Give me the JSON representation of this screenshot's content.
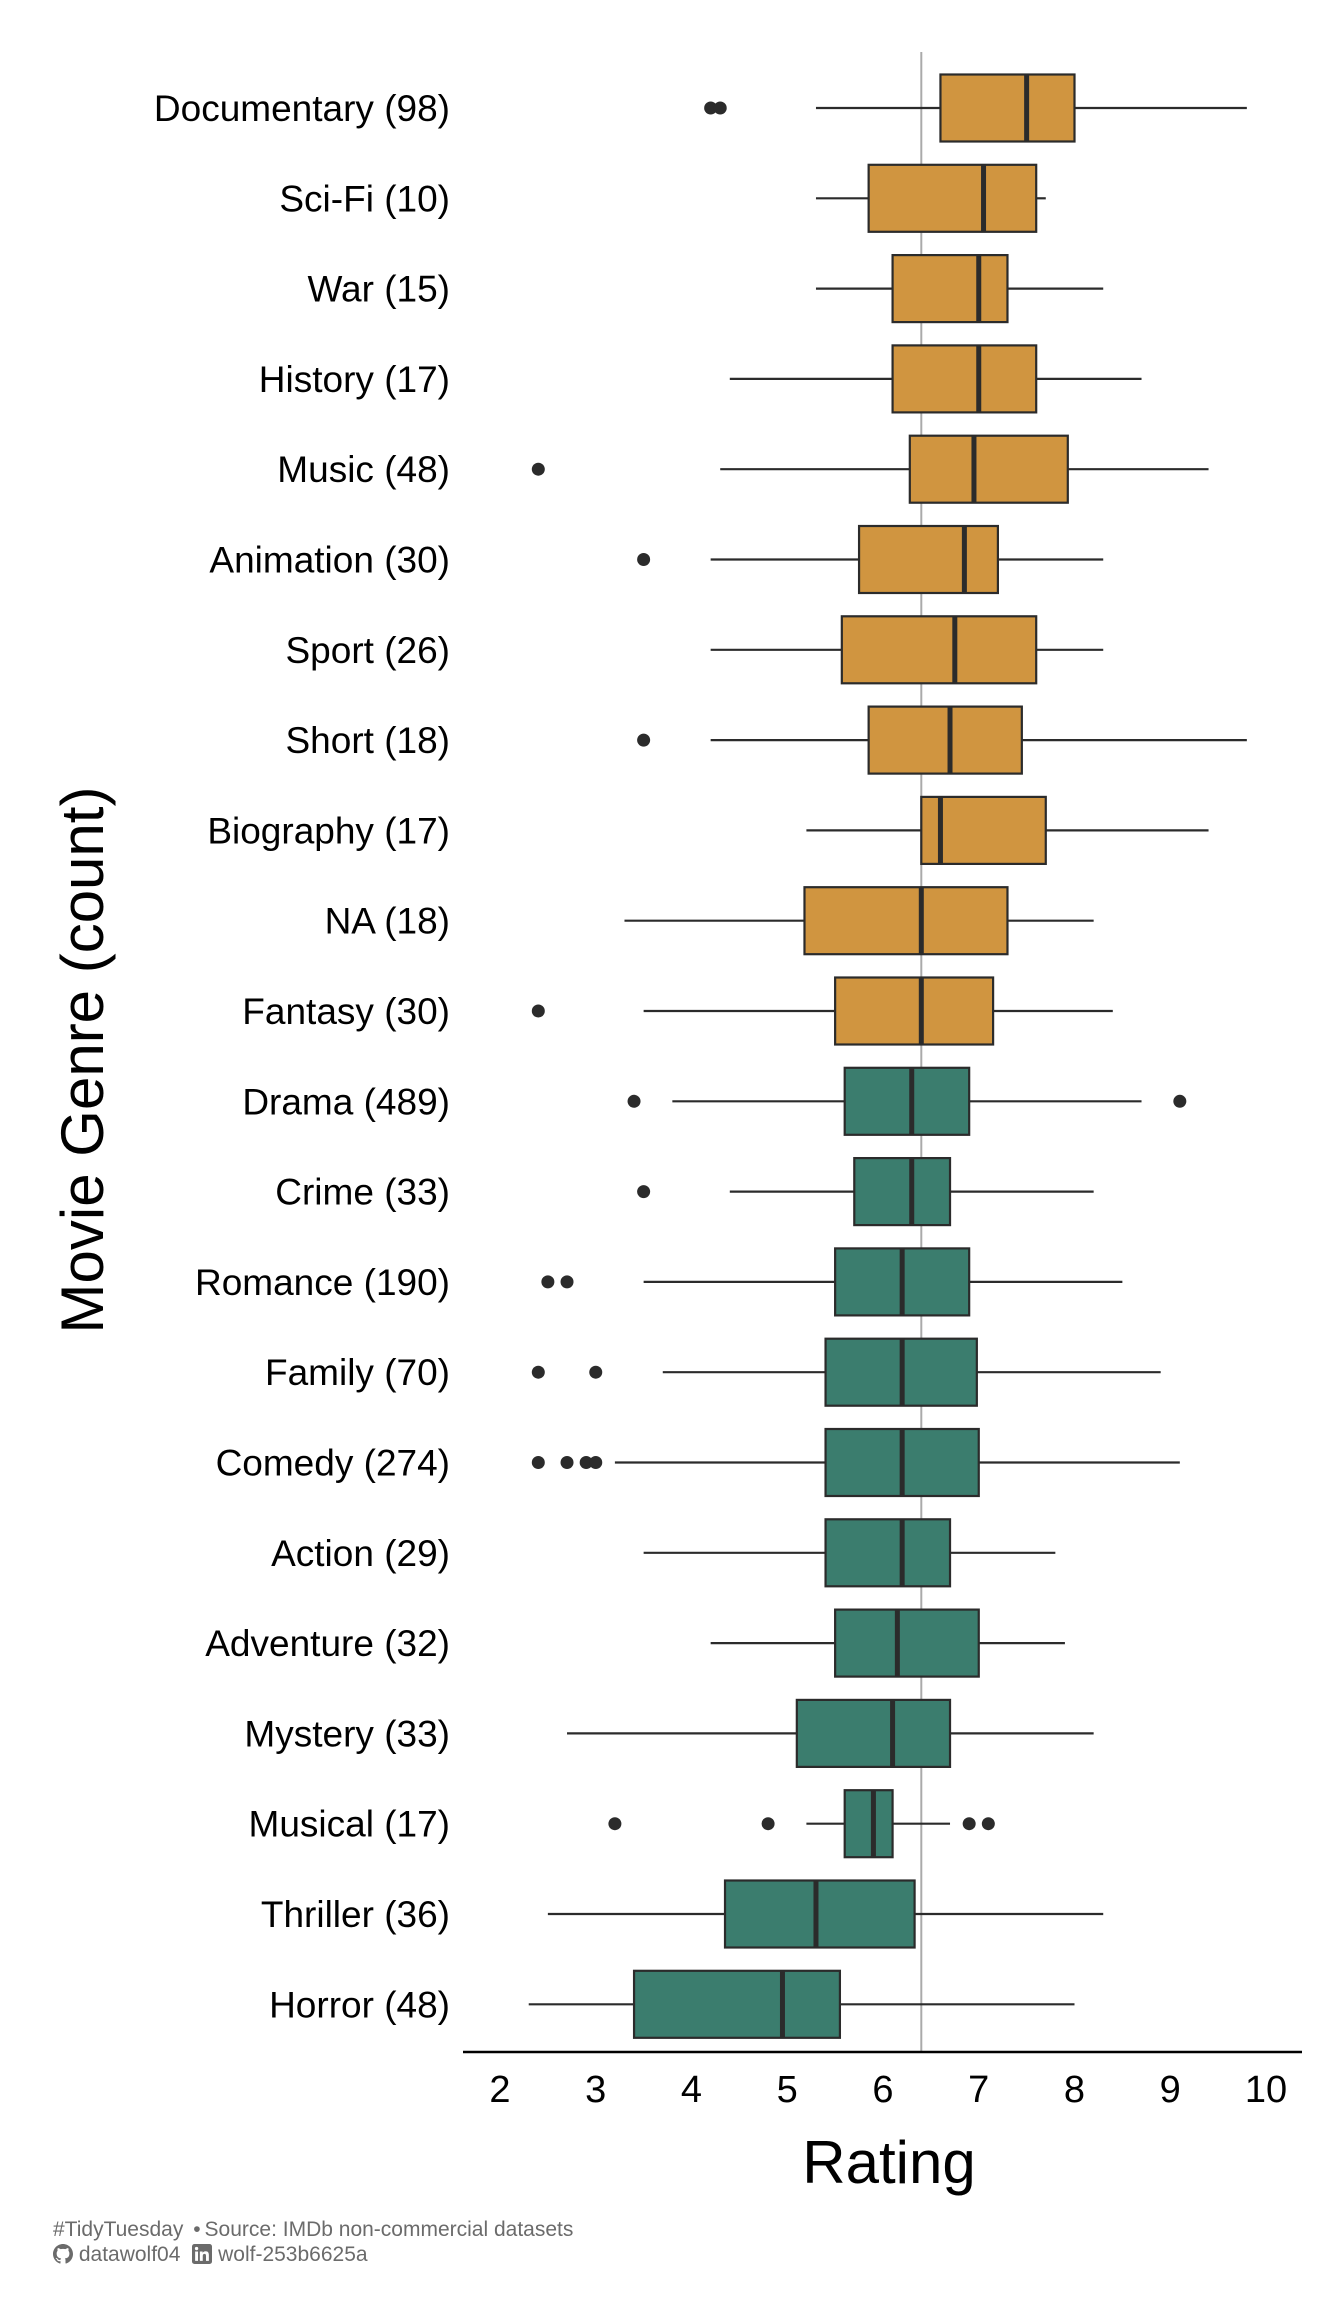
{
  "chart_data": {
    "type": "boxplot",
    "xlabel": "Rating",
    "ylabel": "Movie Genre (count)",
    "xlim": [
      1.6,
      10.4
    ],
    "xticks": [
      2,
      3,
      4,
      5,
      6,
      7,
      8,
      9,
      10
    ],
    "reference_line": 6.4,
    "colors": {
      "above": "#D09540",
      "below": "#3B7D6E",
      "line": "#2b2b2b",
      "refline": "#aaaaaa"
    },
    "categories": [
      {
        "label": "Documentary (98)",
        "group": "above",
        "whisker_low": 5.3,
        "q1": 6.6,
        "median": 7.5,
        "q3": 8.0,
        "whisker_high": 9.8,
        "outliers": [
          4.2,
          4.3
        ]
      },
      {
        "label": "Sci-Fi (10)",
        "group": "above",
        "whisker_low": 5.3,
        "q1": 5.85,
        "median": 7.05,
        "q3": 7.6,
        "whisker_high": 7.7,
        "outliers": []
      },
      {
        "label": "War (15)",
        "group": "above",
        "whisker_low": 5.3,
        "q1": 6.1,
        "median": 7.0,
        "q3": 7.3,
        "whisker_high": 8.3,
        "outliers": []
      },
      {
        "label": "History (17)",
        "group": "above",
        "whisker_low": 4.4,
        "q1": 6.1,
        "median": 7.0,
        "q3": 7.6,
        "whisker_high": 8.7,
        "outliers": []
      },
      {
        "label": "Music (48)",
        "group": "above",
        "whisker_low": 4.3,
        "q1": 6.28,
        "median": 6.95,
        "q3": 7.93,
        "whisker_high": 9.4,
        "outliers": [
          2.4
        ]
      },
      {
        "label": "Animation (30)",
        "group": "above",
        "whisker_low": 4.2,
        "q1": 5.75,
        "median": 6.85,
        "q3": 7.2,
        "whisker_high": 8.3,
        "outliers": [
          3.5
        ]
      },
      {
        "label": "Sport (26)",
        "group": "above",
        "whisker_low": 4.2,
        "q1": 5.57,
        "median": 6.75,
        "q3": 7.6,
        "whisker_high": 8.3,
        "outliers": []
      },
      {
        "label": "Short (18)",
        "group": "above",
        "whisker_low": 4.2,
        "q1": 5.85,
        "median": 6.7,
        "q3": 7.45,
        "whisker_high": 9.8,
        "outliers": [
          3.5
        ]
      },
      {
        "label": "Biography (17)",
        "group": "above",
        "whisker_low": 5.2,
        "q1": 6.4,
        "median": 6.6,
        "q3": 7.7,
        "whisker_high": 9.4,
        "outliers": []
      },
      {
        "label": "NA (18)",
        "group": "above",
        "whisker_low": 3.3,
        "q1": 5.18,
        "median": 6.4,
        "q3": 7.3,
        "whisker_high": 8.2,
        "outliers": []
      },
      {
        "label": "Fantasy (30)",
        "group": "above",
        "whisker_low": 3.5,
        "q1": 5.5,
        "median": 6.4,
        "q3": 7.15,
        "whisker_high": 8.4,
        "outliers": [
          2.4
        ]
      },
      {
        "label": "Drama (489)",
        "group": "below",
        "whisker_low": 3.8,
        "q1": 5.6,
        "median": 6.3,
        "q3": 6.9,
        "whisker_high": 8.7,
        "outliers": [
          3.4,
          9.1
        ]
      },
      {
        "label": "Crime (33)",
        "group": "below",
        "whisker_low": 4.4,
        "q1": 5.7,
        "median": 6.3,
        "q3": 6.7,
        "whisker_high": 8.2,
        "outliers": [
          3.5
        ]
      },
      {
        "label": "Romance (190)",
        "group": "below",
        "whisker_low": 3.5,
        "q1": 5.5,
        "median": 6.2,
        "q3": 6.9,
        "whisker_high": 8.5,
        "outliers": [
          2.5,
          2.7
        ]
      },
      {
        "label": "Family (70)",
        "group": "below",
        "whisker_low": 3.7,
        "q1": 5.4,
        "median": 6.2,
        "q3": 6.98,
        "whisker_high": 8.9,
        "outliers": [
          2.4,
          3.0
        ]
      },
      {
        "label": "Comedy (274)",
        "group": "below",
        "whisker_low": 3.2,
        "q1": 5.4,
        "median": 6.2,
        "q3": 7.0,
        "whisker_high": 9.1,
        "outliers": [
          2.4,
          2.7,
          2.9,
          3.0
        ]
      },
      {
        "label": "Action (29)",
        "group": "below",
        "whisker_low": 3.5,
        "q1": 5.4,
        "median": 6.2,
        "q3": 6.7,
        "whisker_high": 7.8,
        "outliers": []
      },
      {
        "label": "Adventure (32)",
        "group": "below",
        "whisker_low": 4.2,
        "q1": 5.5,
        "median": 6.15,
        "q3": 7.0,
        "whisker_high": 7.9,
        "outliers": []
      },
      {
        "label": "Mystery (33)",
        "group": "below",
        "whisker_low": 2.7,
        "q1": 5.1,
        "median": 6.1,
        "q3": 6.7,
        "whisker_high": 8.2,
        "outliers": []
      },
      {
        "label": "Musical (17)",
        "group": "below",
        "whisker_low": 5.2,
        "q1": 5.6,
        "median": 5.9,
        "q3": 6.1,
        "whisker_high": 6.7,
        "outliers": [
          3.2,
          4.8,
          6.9,
          7.1
        ]
      },
      {
        "label": "Thriller (36)",
        "group": "below",
        "whisker_low": 2.5,
        "q1": 4.35,
        "median": 5.3,
        "q3": 6.33,
        "whisker_high": 8.3,
        "outliers": []
      },
      {
        "label": "Horror (48)",
        "group": "below",
        "whisker_low": 2.3,
        "q1": 3.4,
        "median": 4.95,
        "q3": 5.55,
        "whisker_high": 8.0,
        "outliers": []
      }
    ]
  },
  "footer": {
    "line1_tag": "#TidyTuesday",
    "line1_separator": "•",
    "line1_source": "Source: IMDb non-commercial  datasets",
    "github_user": "datawolf04",
    "linkedin_user": "wolf-253b6625a",
    "github_icon": "github-icon",
    "linkedin_icon": "linkedin-icon"
  }
}
